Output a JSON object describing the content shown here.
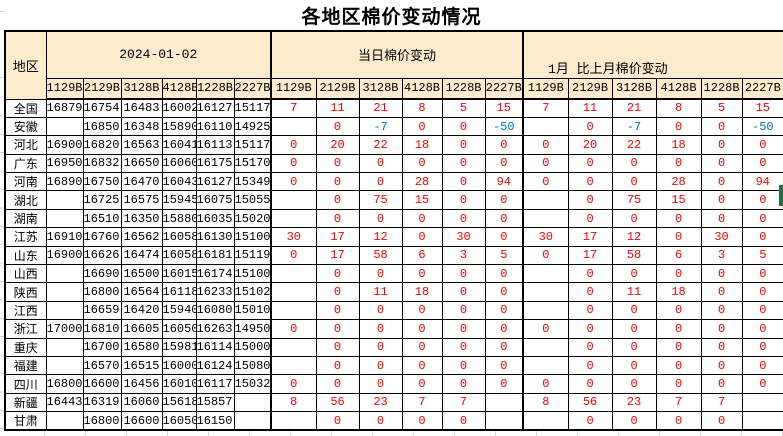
{
  "title": "各地区棉价变动情况",
  "table": {
    "region_header": "地区",
    "groups": [
      {
        "label": "2024-01-02"
      },
      {
        "label": "当日棉价变动"
      },
      {
        "label": "1月 比上月棉价变动"
      }
    ],
    "grade_cols": [
      "1129B",
      "2129B",
      "3128B",
      "4128B",
      "1228B",
      "2227B"
    ],
    "rows": [
      {
        "region": "全国",
        "prices": [
          "16879",
          "16754",
          "16483",
          "16002",
          "16127",
          "15117"
        ],
        "daily": [
          "7",
          "11",
          "21",
          "8",
          "5",
          "15"
        ],
        "monthly": [
          "7",
          "11",
          "21",
          "8",
          "5",
          "15"
        ]
      },
      {
        "region": "安徽",
        "prices": [
          "",
          "16850",
          "16348",
          "15890",
          "16110",
          "14925"
        ],
        "daily": [
          "",
          "0",
          "-7",
          "0",
          "0",
          "-50"
        ],
        "monthly": [
          "",
          "0",
          "-7",
          "0",
          "0",
          "-50"
        ]
      },
      {
        "region": "河北",
        "prices": [
          "16900",
          "16820",
          "16563",
          "16041",
          "16113",
          "15117"
        ],
        "daily": [
          "0",
          "20",
          "22",
          "18",
          "0",
          "0"
        ],
        "monthly": [
          "0",
          "20",
          "22",
          "18",
          "0",
          "0"
        ]
      },
      {
        "region": "广东",
        "prices": [
          "16950",
          "16832",
          "16650",
          "16060",
          "16175",
          "15170"
        ],
        "daily": [
          "0",
          "0",
          "0",
          "0",
          "0",
          "0"
        ],
        "monthly": [
          "0",
          "0",
          "0",
          "0",
          "0",
          "0"
        ]
      },
      {
        "region": "河南",
        "prices": [
          "16890",
          "16750",
          "16470",
          "16043",
          "16127",
          "15349"
        ],
        "daily": [
          "0",
          "0",
          "0",
          "28",
          "0",
          "94"
        ],
        "monthly": [
          "0",
          "0",
          "0",
          "28",
          "0",
          "94"
        ]
      },
      {
        "region": "湖北",
        "prices": [
          "",
          "16725",
          "16575",
          "15945",
          "16075",
          "15055"
        ],
        "daily": [
          "",
          "0",
          "75",
          "15",
          "0",
          "0"
        ],
        "monthly": [
          "",
          "0",
          "75",
          "15",
          "0",
          "0"
        ]
      },
      {
        "region": "湖南",
        "prices": [
          "",
          "16510",
          "16350",
          "15880",
          "16035",
          "15020"
        ],
        "daily": [
          "",
          "0",
          "0",
          "0",
          "0",
          "0"
        ],
        "monthly": [
          "",
          "0",
          "0",
          "0",
          "0",
          "0"
        ]
      },
      {
        "region": "江苏",
        "prices": [
          "16910",
          "16760",
          "16562",
          "16058",
          "16130",
          "15100"
        ],
        "daily": [
          "30",
          "17",
          "12",
          "0",
          "30",
          "0"
        ],
        "monthly": [
          "30",
          "17",
          "12",
          "0",
          "30",
          "0"
        ]
      },
      {
        "region": "山东",
        "prices": [
          "16900",
          "16626",
          "16474",
          "16058",
          "16181",
          "15119"
        ],
        "daily": [
          "0",
          "17",
          "58",
          "6",
          "3",
          "5"
        ],
        "monthly": [
          "0",
          "17",
          "58",
          "6",
          "3",
          "5"
        ]
      },
      {
        "region": "山西",
        "prices": [
          "",
          "16690",
          "16500",
          "16015",
          "16174",
          "15100"
        ],
        "daily": [
          "",
          "0",
          "0",
          "0",
          "0",
          "0"
        ],
        "monthly": [
          "",
          "0",
          "0",
          "0",
          "0",
          "0"
        ]
      },
      {
        "region": "陕西",
        "prices": [
          "",
          "16800",
          "16564",
          "16118",
          "16233",
          "15102"
        ],
        "daily": [
          "",
          "0",
          "11",
          "18",
          "0",
          "0"
        ],
        "monthly": [
          "",
          "0",
          "11",
          "18",
          "0",
          "0"
        ]
      },
      {
        "region": "江西",
        "prices": [
          "",
          "16659",
          "16420",
          "15940",
          "16080",
          "15010"
        ],
        "daily": [
          "",
          "0",
          "0",
          "0",
          "0",
          "0"
        ],
        "monthly": [
          "",
          "0",
          "0",
          "0",
          "0",
          "0"
        ]
      },
      {
        "region": "浙江",
        "prices": [
          "17000",
          "16810",
          "16605",
          "16050",
          "16263",
          "14950"
        ],
        "daily": [
          "0",
          "0",
          "0",
          "0",
          "0",
          "0"
        ],
        "monthly": [
          "0",
          "0",
          "0",
          "0",
          "0",
          "0"
        ]
      },
      {
        "region": "重庆",
        "prices": [
          "",
          "16700",
          "16580",
          "15981",
          "16114",
          "15000"
        ],
        "daily": [
          "",
          "0",
          "0",
          "0",
          "0",
          "0"
        ],
        "monthly": [
          "",
          "0",
          "0",
          "0",
          "0",
          "0"
        ]
      },
      {
        "region": "福建",
        "prices": [
          "",
          "16570",
          "16515",
          "16000",
          "16124",
          "15080"
        ],
        "daily": [
          "",
          "0",
          "0",
          "0",
          "0",
          "0"
        ],
        "monthly": [
          "",
          "0",
          "0",
          "0",
          "0",
          "0"
        ]
      },
      {
        "region": "四川",
        "prices": [
          "16800",
          "16600",
          "16456",
          "16010",
          "16117",
          "15032"
        ],
        "daily": [
          "0",
          "0",
          "0",
          "0",
          "0",
          "0"
        ],
        "monthly": [
          "0",
          "0",
          "0",
          "0",
          "0",
          "0"
        ]
      },
      {
        "region": "新疆",
        "prices": [
          "16443",
          "16319",
          "16060",
          "15618",
          "15857",
          ""
        ],
        "daily": [
          "8",
          "56",
          "23",
          "7",
          "7",
          ""
        ],
        "monthly": [
          "8",
          "56",
          "23",
          "7",
          "7",
          ""
        ]
      },
      {
        "region": "甘肃",
        "prices": [
          "",
          "16800",
          "16600",
          "16050",
          "16150",
          ""
        ],
        "daily": [
          "",
          "0",
          "0",
          "0",
          "0",
          ""
        ],
        "monthly": [
          "",
          "0",
          "0",
          "0",
          "0",
          ""
        ]
      }
    ]
  },
  "colors": {
    "header_bg": "#fdebcd",
    "positive_change": "#fe0000",
    "negative_change": "#0070c0",
    "border": "#000000",
    "selection_handle": "#276b47"
  }
}
